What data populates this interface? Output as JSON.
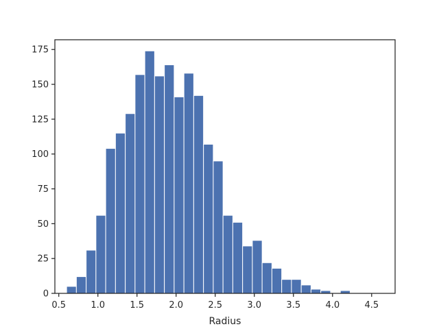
{
  "chart_data": {
    "type": "histogram",
    "title": "",
    "xlabel": "Radius",
    "ylabel": "",
    "xlim": [
      0.45,
      4.8
    ],
    "ylim": [
      0,
      182
    ],
    "bar_color": "#4c72b0",
    "edge_color": "#ffffff",
    "axis_color": "#262626",
    "grid": false,
    "x_ticks": [
      0.5,
      1.0,
      1.5,
      2.0,
      2.5,
      3.0,
      3.5,
      4.0,
      4.5
    ],
    "x_tick_labels": [
      "0.5",
      "1.0",
      "1.5",
      "2.0",
      "2.5",
      "3.0",
      "3.5",
      "4.0",
      "4.5"
    ],
    "y_ticks": [
      0,
      25,
      50,
      75,
      100,
      125,
      150,
      175
    ],
    "y_tick_labels": [
      "0",
      "25",
      "50",
      "75",
      "100",
      "125",
      "150",
      "175"
    ],
    "bin_edges": [
      0.6,
      0.725,
      0.85,
      0.975,
      1.1,
      1.225,
      1.35,
      1.475,
      1.6,
      1.725,
      1.85,
      1.975,
      2.1,
      2.225,
      2.35,
      2.475,
      2.6,
      2.725,
      2.85,
      2.975,
      3.1,
      3.225,
      3.35,
      3.475,
      3.6,
      3.725,
      3.85,
      3.975,
      4.1,
      4.225,
      4.35,
      4.475,
      4.6
    ],
    "values": [
      5,
      12,
      31,
      56,
      104,
      115,
      129,
      157,
      174,
      156,
      164,
      141,
      158,
      142,
      107,
      95,
      56,
      51,
      34,
      38,
      22,
      18,
      10,
      10,
      6,
      3,
      2,
      0,
      2,
      0,
      0,
      0
    ]
  }
}
